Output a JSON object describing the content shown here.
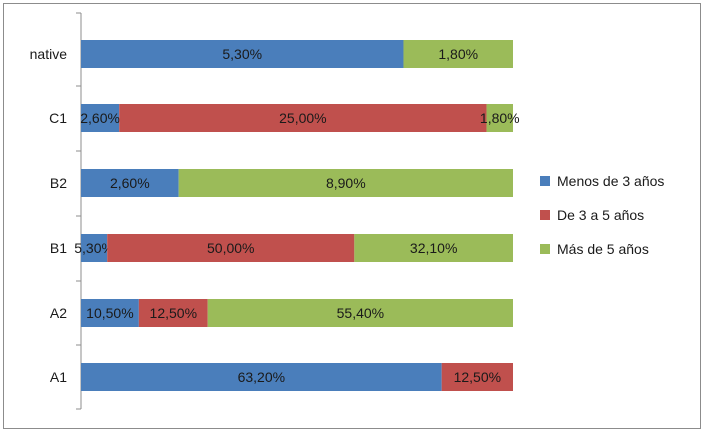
{
  "chart_data": {
    "type": "bar",
    "orientation": "horizontal",
    "stacked": true,
    "categories": [
      "native",
      "C1",
      "B2",
      "B1",
      "A2",
      "A1"
    ],
    "series": [
      {
        "name": "Menos de 3 años",
        "color": "#4a7ebb",
        "values": [
          5.3,
          2.6,
          2.6,
          5.3,
          10.5,
          63.2
        ],
        "labels": [
          "5,30%",
          "2,60%",
          "2,60%",
          "5,30%",
          "10,50%",
          "63,20%"
        ]
      },
      {
        "name": "De 3 a 5 años",
        "color": "#c0504d",
        "values": [
          0,
          25.0,
          0,
          50.0,
          12.5,
          12.5
        ],
        "labels": [
          "",
          "25,00%",
          "",
          "50,00%",
          "12,50%",
          "12,50%"
        ]
      },
      {
        "name": "Más de 5 años",
        "color": "#9bbb59",
        "values": [
          1.8,
          1.8,
          8.9,
          32.1,
          55.4,
          0
        ],
        "labels": [
          "1,80%",
          "1,80%",
          "8,90%",
          "32,10%",
          "55,40%",
          ""
        ]
      }
    ],
    "normalized_100_percent": true,
    "grid": false,
    "legend_position": "right"
  }
}
